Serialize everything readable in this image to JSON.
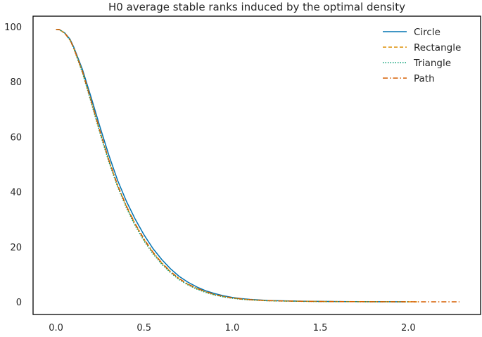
{
  "chart_data": {
    "type": "line",
    "title": "H0 average stable ranks induced by the optimal density",
    "xlabel": "",
    "ylabel": "",
    "xlim": [
      -0.13,
      2.41
    ],
    "ylim": [
      -4.6,
      103.8
    ],
    "x_ticks": [
      0.0,
      0.5,
      1.0,
      1.5,
      2.0
    ],
    "x_tick_labels": [
      "0.0",
      "0.5",
      "1.0",
      "1.5",
      "2.0"
    ],
    "y_ticks": [
      0,
      20,
      40,
      60,
      80,
      100
    ],
    "y_tick_labels": [
      "0",
      "20",
      "40",
      "60",
      "80",
      "100"
    ],
    "grid": false,
    "legend_position": "top-right",
    "series": [
      {
        "name": "Circle",
        "color": "#0173b2",
        "dash": "solid",
        "points": [
          [
            0.0,
            99.0
          ],
          [
            0.02,
            98.9
          ],
          [
            0.05,
            97.7
          ],
          [
            0.08,
            95.4
          ],
          [
            0.1,
            92.7
          ],
          [
            0.15,
            84.5
          ],
          [
            0.2,
            74.2
          ],
          [
            0.25,
            63.5
          ],
          [
            0.3,
            53.3
          ],
          [
            0.35,
            44.1
          ],
          [
            0.4,
            36.5
          ],
          [
            0.45,
            30.0
          ],
          [
            0.5,
            24.3
          ],
          [
            0.55,
            19.4
          ],
          [
            0.6,
            15.4
          ],
          [
            0.65,
            12.0
          ],
          [
            0.7,
            9.2
          ],
          [
            0.75,
            7.1
          ],
          [
            0.8,
            5.4
          ],
          [
            0.85,
            4.0
          ],
          [
            0.9,
            3.0
          ],
          [
            0.95,
            2.2
          ],
          [
            1.0,
            1.6
          ],
          [
            1.05,
            1.2
          ],
          [
            1.1,
            0.9
          ],
          [
            1.2,
            0.5
          ],
          [
            1.3,
            0.35
          ],
          [
            1.4,
            0.22
          ],
          [
            1.5,
            0.15
          ],
          [
            1.6,
            0.1
          ],
          [
            1.7,
            0.06
          ],
          [
            1.8,
            0.04
          ],
          [
            1.9,
            0.02
          ],
          [
            1.98,
            0.01
          ]
        ]
      },
      {
        "name": "Rectangle",
        "color": "#de8f05",
        "dash": "dashed",
        "points": [
          [
            0.0,
            99.0
          ],
          [
            0.02,
            98.9
          ],
          [
            0.05,
            97.6
          ],
          [
            0.08,
            95.1
          ],
          [
            0.1,
            92.3
          ],
          [
            0.15,
            83.6
          ],
          [
            0.2,
            72.8
          ],
          [
            0.25,
            61.8
          ],
          [
            0.3,
            51.4
          ],
          [
            0.35,
            42.2
          ],
          [
            0.4,
            34.6
          ],
          [
            0.45,
            28.1
          ],
          [
            0.5,
            22.6
          ],
          [
            0.55,
            17.9
          ],
          [
            0.6,
            14.1
          ],
          [
            0.65,
            10.9
          ],
          [
            0.7,
            8.3
          ],
          [
            0.75,
            6.3
          ],
          [
            0.8,
            4.8
          ],
          [
            0.85,
            3.6
          ],
          [
            0.9,
            2.6
          ],
          [
            0.95,
            1.9
          ],
          [
            1.0,
            1.4
          ],
          [
            1.05,
            1.0
          ],
          [
            1.1,
            0.75
          ],
          [
            1.2,
            0.4
          ],
          [
            1.3,
            0.28
          ],
          [
            1.4,
            0.18
          ],
          [
            1.5,
            0.12
          ],
          [
            1.6,
            0.08
          ],
          [
            1.7,
            0.05
          ],
          [
            1.8,
            0.03
          ],
          [
            1.9,
            0.02
          ],
          [
            2.0,
            0.01
          ],
          [
            2.05,
            0.01
          ]
        ]
      },
      {
        "name": "Triangle",
        "color": "#029e73",
        "dash": "dotted",
        "points": [
          [
            0.0,
            99.0
          ],
          [
            0.02,
            98.9
          ],
          [
            0.05,
            97.6
          ],
          [
            0.08,
            95.0
          ],
          [
            0.1,
            92.2
          ],
          [
            0.15,
            83.3
          ],
          [
            0.2,
            72.4
          ],
          [
            0.25,
            61.3
          ],
          [
            0.3,
            50.9
          ],
          [
            0.35,
            41.7
          ],
          [
            0.4,
            34.1
          ],
          [
            0.45,
            27.6
          ],
          [
            0.5,
            22.1
          ],
          [
            0.55,
            17.5
          ],
          [
            0.6,
            13.7
          ],
          [
            0.65,
            10.6
          ],
          [
            0.7,
            8.0
          ],
          [
            0.75,
            6.1
          ],
          [
            0.8,
            4.6
          ],
          [
            0.85,
            3.4
          ],
          [
            0.9,
            2.5
          ],
          [
            0.95,
            1.8
          ],
          [
            1.0,
            1.3
          ],
          [
            1.05,
            0.95
          ],
          [
            1.1,
            0.7
          ],
          [
            1.2,
            0.38
          ],
          [
            1.3,
            0.26
          ],
          [
            1.4,
            0.17
          ],
          [
            1.5,
            0.11
          ],
          [
            1.6,
            0.07
          ],
          [
            1.7,
            0.05
          ],
          [
            1.8,
            0.03
          ],
          [
            1.9,
            0.02
          ],
          [
            2.0,
            0.01
          ]
        ]
      },
      {
        "name": "Path",
        "color": "#d55e00",
        "dash": "dashdot",
        "points": [
          [
            0.0,
            99.0
          ],
          [
            0.02,
            98.9
          ],
          [
            0.05,
            97.6
          ],
          [
            0.08,
            95.1
          ],
          [
            0.1,
            92.4
          ],
          [
            0.15,
            83.8
          ],
          [
            0.2,
            73.0
          ],
          [
            0.25,
            62.0
          ],
          [
            0.3,
            51.6
          ],
          [
            0.35,
            42.4
          ],
          [
            0.4,
            34.8
          ],
          [
            0.45,
            28.3
          ],
          [
            0.5,
            22.8
          ],
          [
            0.55,
            18.1
          ],
          [
            0.6,
            14.2
          ],
          [
            0.65,
            11.0
          ],
          [
            0.7,
            8.4
          ],
          [
            0.75,
            6.4
          ],
          [
            0.8,
            4.9
          ],
          [
            0.85,
            3.7
          ],
          [
            0.9,
            2.7
          ],
          [
            0.95,
            2.0
          ],
          [
            1.0,
            1.45
          ],
          [
            1.05,
            1.05
          ],
          [
            1.1,
            0.8
          ],
          [
            1.2,
            0.45
          ],
          [
            1.3,
            0.3
          ],
          [
            1.4,
            0.2
          ],
          [
            1.5,
            0.13
          ],
          [
            1.6,
            0.09
          ],
          [
            1.7,
            0.06
          ],
          [
            1.8,
            0.04
          ],
          [
            1.9,
            0.03
          ],
          [
            2.0,
            0.02
          ],
          [
            2.1,
            0.01
          ],
          [
            2.2,
            0.01
          ],
          [
            2.29,
            0.0
          ]
        ]
      }
    ]
  }
}
